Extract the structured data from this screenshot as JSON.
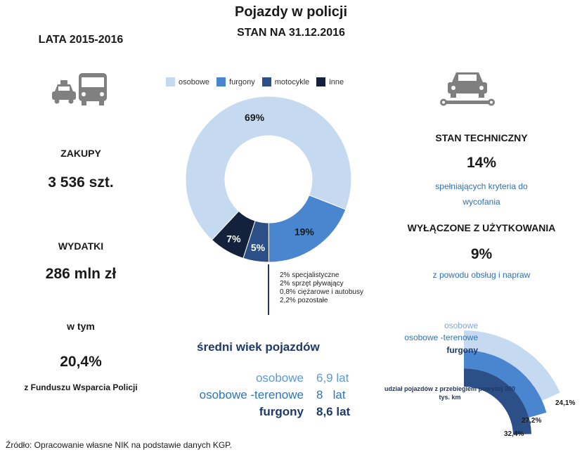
{
  "header": {
    "title": "Pojazdy w policji",
    "subtitle": "STAN NA 31.12.2016"
  },
  "left": {
    "years": "LATA 2015-2016",
    "purchases_label": "ZAKUPY",
    "purchases_value": "3 536 szt.",
    "expenses_label": "WYDATKI",
    "expenses_value": "286 mln zł",
    "of_which_label": "w tym",
    "fund_value": "20,4%",
    "fund_label": "z Funduszu Wsparcia Policji"
  },
  "right": {
    "tech_label": "STAN TECHNICZNY",
    "tech_value": "14%",
    "tech_desc_1": "spełniających kryteria do",
    "tech_desc_2": "wycofania",
    "excluded_label": "WYŁĄCZONE Z UŻYTKOWANIA",
    "excluded_value": "9%",
    "excluded_desc": "z powodu obsług i napraw"
  },
  "note": [
    "2% specjalistyczne",
    "2% sprzęt pływający",
    "0,8% ciężarowe i autobusy",
    "2,2% pozostałe"
  ],
  "avg_age": {
    "title": "średni wiek pojazdów",
    "rows": [
      {
        "name": "osobowe",
        "value": "6,9 lat",
        "color": "#5b9bd5"
      },
      {
        "name": "osobowe -terenowe",
        "value": "8   lat",
        "color": "#2e75b6"
      },
      {
        "name": "furgony",
        "value": "8,6 lat",
        "color": "#1f3a66"
      }
    ]
  },
  "source": "Źródło: Opracowanie  własne NIK na podstawie danych KGP.",
  "icons": [
    "taxi-icon",
    "bus-icon",
    "car-wrench-icon"
  ],
  "chart_data": [
    {
      "type": "pie",
      "categories": [
        "osobowe",
        "furgony",
        "motocykle",
        "inne"
      ],
      "values": [
        69,
        19,
        5,
        7
      ],
      "labels": [
        "69%",
        "19%",
        "5%",
        "7%"
      ],
      "colors": [
        "#c5d9f1",
        "#4a86cf",
        "#2b4f86",
        "#14213d"
      ],
      "legend": "top"
    },
    {
      "type": "bar",
      "title": "udział pojazdów z przebiegiem powyżej 200 tys. km",
      "categories": [
        "osobowe",
        "osobowe -terenowe",
        "furgony"
      ],
      "values": [
        24.1,
        27.2,
        32.4
      ],
      "labels": [
        "24,1%",
        "27,2%",
        "32,4%"
      ],
      "colors": [
        "#c5d9f1",
        "#4a86cf",
        "#2b4f86"
      ]
    }
  ]
}
